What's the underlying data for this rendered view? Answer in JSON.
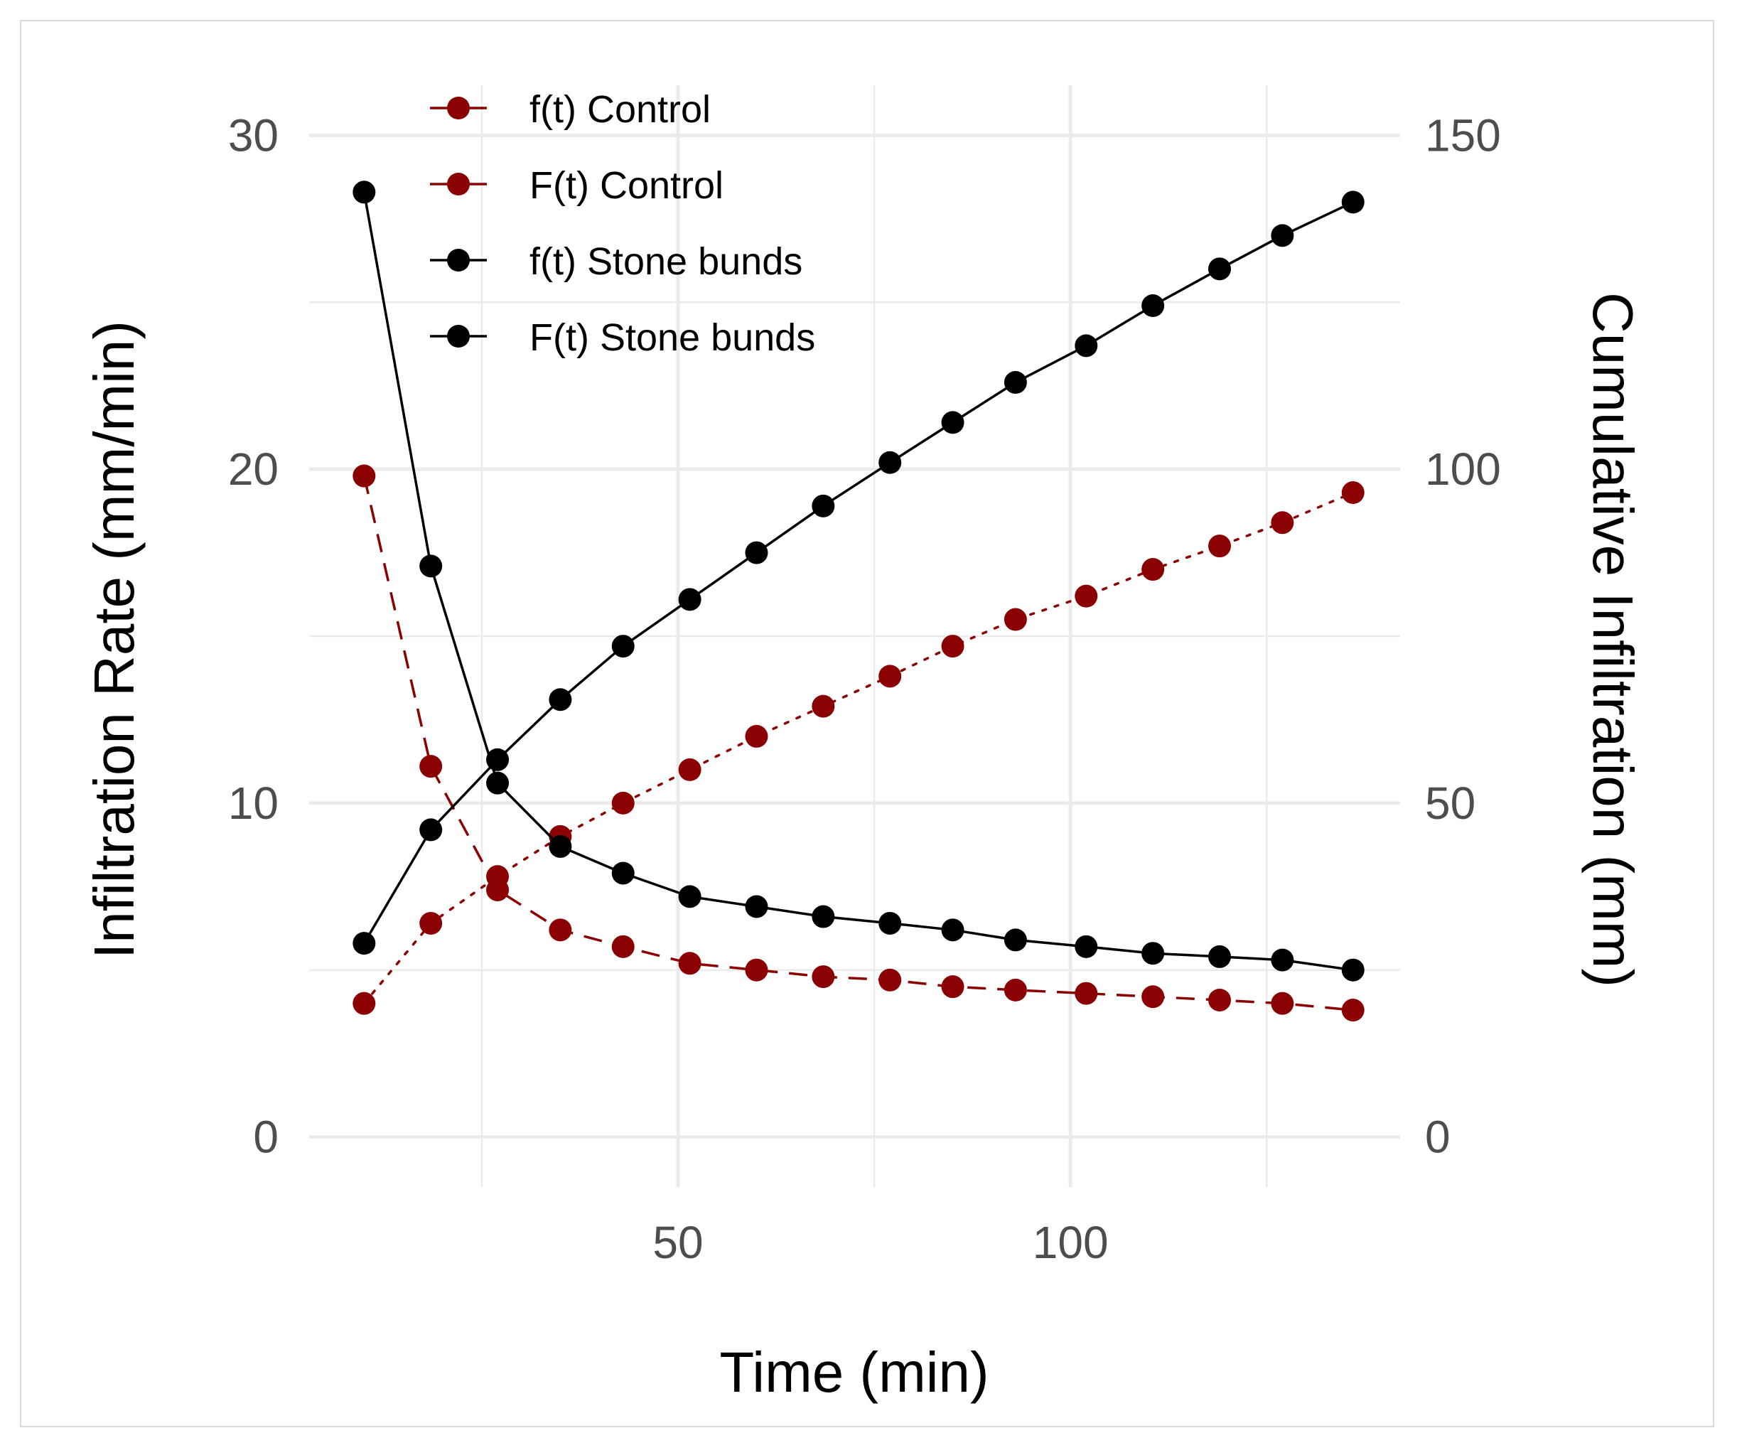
{
  "chart_data": {
    "type": "line",
    "title": "",
    "xlabel": "Time (min)",
    "ylabel_left": "Infiltration Rate (mm/min)",
    "ylabel_right": "Cumulative Infiltration (mm)",
    "xlim": [
      3,
      142
    ],
    "ylim_left": [
      -1.5,
      31.5
    ],
    "ylim_right": [
      -7.5,
      157.5
    ],
    "x_ticks": [
      50,
      100
    ],
    "y_left_ticks": [
      0,
      10,
      20,
      30
    ],
    "y_right_ticks": [
      0,
      50,
      100,
      150
    ],
    "grid": true,
    "legend_position": "top-left",
    "x": [
      10,
      18.5,
      27,
      35,
      43,
      51.5,
      60,
      68.5,
      77,
      85,
      93,
      102,
      110.5,
      119,
      127,
      136
    ],
    "series": [
      {
        "name": "f(t) Control",
        "axis": "left",
        "color": "#8b0000",
        "linestyle": "dashed",
        "values": [
          19.8,
          11.1,
          7.4,
          6.2,
          5.7,
          5.2,
          5.0,
          4.8,
          4.7,
          4.5,
          4.4,
          4.3,
          4.2,
          4.1,
          4.0,
          3.8
        ]
      },
      {
        "name": "F(t) Control",
        "axis": "right",
        "color": "#8b0000",
        "linestyle": "dotted",
        "values": [
          20,
          32,
          39,
          45,
          50,
          55,
          60,
          64.5,
          69,
          73.5,
          77.5,
          81,
          85,
          88.5,
          92,
          96.5
        ]
      },
      {
        "name": "f(t) Stone bunds",
        "axis": "left",
        "color": "#000000",
        "linestyle": "solid",
        "values": [
          28.3,
          17.1,
          10.6,
          8.7,
          7.9,
          7.2,
          6.9,
          6.6,
          6.4,
          6.2,
          5.9,
          5.7,
          5.5,
          5.4,
          5.3,
          5.0
        ]
      },
      {
        "name": "F(t) Stone bunds",
        "axis": "right",
        "color": "#000000",
        "linestyle": "solid",
        "values": [
          29,
          46,
          56.5,
          65.5,
          73.5,
          80.5,
          87.5,
          94.5,
          101,
          107,
          113,
          118.5,
          124.5,
          130,
          135,
          140
        ]
      }
    ]
  }
}
